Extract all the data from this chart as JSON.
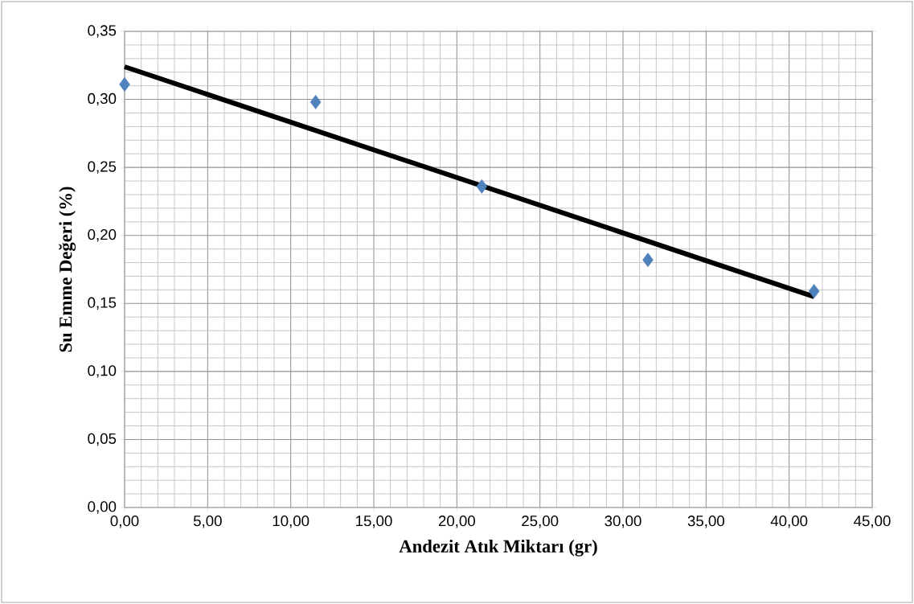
{
  "chart_data": {
    "type": "scatter",
    "xlabel": "Andezit Atık Miktarı (gr)",
    "ylabel": "Su Emme Değeri (%)",
    "xlim": [
      0,
      45
    ],
    "ylim": [
      0,
      0.35
    ],
    "xticks": [
      {
        "value": 0,
        "label": "0,00"
      },
      {
        "value": 5,
        "label": "5,00"
      },
      {
        "value": 10,
        "label": "10,00"
      },
      {
        "value": 15,
        "label": "15,00"
      },
      {
        "value": 20,
        "label": "20,00"
      },
      {
        "value": 25,
        "label": "25,00"
      },
      {
        "value": 30,
        "label": "30,00"
      },
      {
        "value": 35,
        "label": "35,00"
      },
      {
        "value": 40,
        "label": "40,00"
      },
      {
        "value": 45,
        "label": "45,00"
      }
    ],
    "yticks": [
      {
        "value": 0,
        "label": "0,00"
      },
      {
        "value": 0.05,
        "label": "0,05"
      },
      {
        "value": 0.1,
        "label": "0,10"
      },
      {
        "value": 0.15,
        "label": "0,15"
      },
      {
        "value": 0.2,
        "label": "0,20"
      },
      {
        "value": 0.25,
        "label": "0,25"
      },
      {
        "value": 0.3,
        "label": "0,30"
      },
      {
        "value": 0.35,
        "label": "0,35"
      }
    ],
    "grid": true,
    "series": [
      {
        "color": "#4f81bd",
        "marker": "diamond",
        "x": [
          0,
          11.5,
          21.5,
          31.5,
          41.5
        ],
        "values": [
          0.311,
          0.298,
          0.236,
          0.182,
          0.159
        ]
      },
      {
        "type": "line",
        "color": "#000000",
        "marker": "none",
        "x": [
          0,
          41.5
        ],
        "values": [
          0.324,
          0.155
        ]
      }
    ]
  }
}
